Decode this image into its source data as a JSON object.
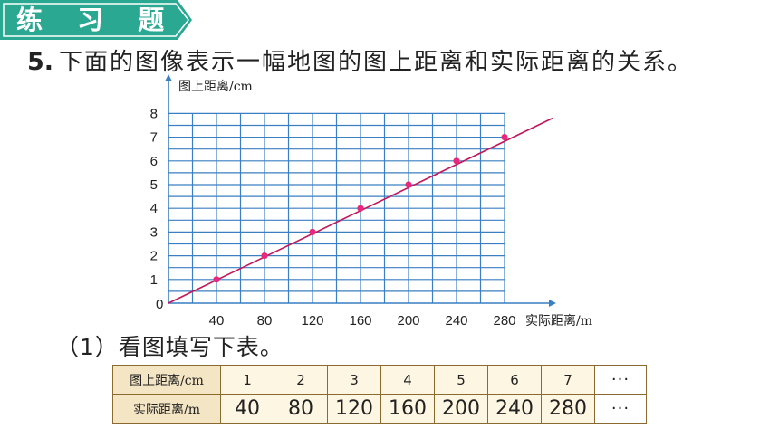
{
  "banner": {
    "title": "练 习 题",
    "color": "#2aa892"
  },
  "problem": {
    "number": "5.",
    "text": "下面的图像表示一幅地图的图上距离和实际距离的关系。"
  },
  "sub_question": "（1）看图填写下表。",
  "chart_data": {
    "type": "line",
    "ylabel": "图上距离/cm",
    "xlabel": "实际距离/m",
    "origin_label": "0",
    "x_ticks": [
      40,
      80,
      120,
      160,
      200,
      240,
      280
    ],
    "y_ticks": [
      1,
      2,
      3,
      4,
      5,
      6,
      7,
      8
    ],
    "xlim": [
      0,
      280
    ],
    "ylim": [
      0,
      8
    ],
    "grid": true,
    "line_extends_to": [
      320,
      7.8
    ],
    "points": [
      {
        "x": 40,
        "y": 1
      },
      {
        "x": 80,
        "y": 2
      },
      {
        "x": 120,
        "y": 3
      },
      {
        "x": 160,
        "y": 4
      },
      {
        "x": 200,
        "y": 5
      },
      {
        "x": 240,
        "y": 6
      },
      {
        "x": 280,
        "y": 7
      }
    ],
    "line_color": "#c2185b",
    "grid_color": "#3a7fc1"
  },
  "table": {
    "row1_header": "图上距离/cm",
    "row2_header": "实际距离/m",
    "row1": [
      "1",
      "2",
      "3",
      "4",
      "5",
      "6",
      "7"
    ],
    "row2": [
      "40",
      "80",
      "120",
      "160",
      "200",
      "240",
      "280"
    ],
    "ellipsis": "···"
  }
}
